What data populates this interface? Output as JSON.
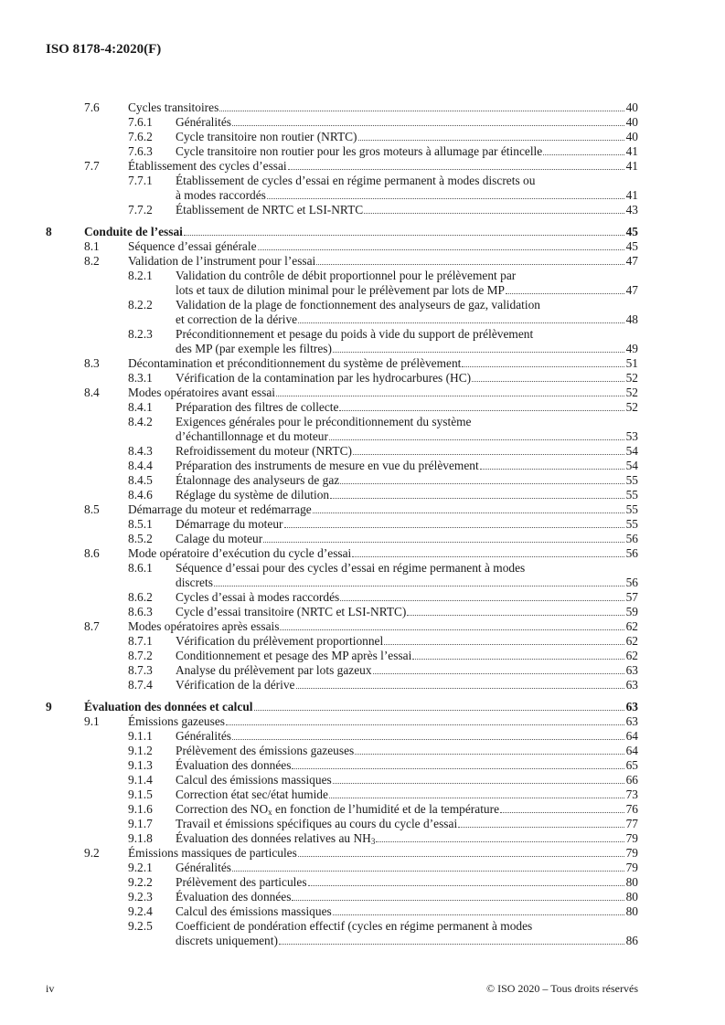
{
  "header": {
    "title": "ISO 8178-4:2020(F)"
  },
  "footer": {
    "page": "iv",
    "copyright": "© ISO 2020 – Tous droits réservés"
  },
  "toc": [
    {
      "level": 1,
      "num": "7.6",
      "lines": [
        [
          "Cycles transitoires"
        ]
      ],
      "page": "40"
    },
    {
      "level": 2,
      "num": "7.6.1",
      "lines": [
        [
          "Généralités"
        ]
      ],
      "page": "40"
    },
    {
      "level": 2,
      "num": "7.6.2",
      "lines": [
        [
          "Cycle transitoire non routier (NRTC)"
        ]
      ],
      "page": "40"
    },
    {
      "level": 2,
      "num": "7.6.3",
      "lines": [
        [
          "Cycle transitoire non routier pour les gros moteurs à allumage par étincelle"
        ]
      ],
      "page": "41"
    },
    {
      "level": 1,
      "num": "7.7",
      "lines": [
        [
          "Établissement des cycles d’essai"
        ]
      ],
      "page": "41"
    },
    {
      "level": 2,
      "num": "7.7.1",
      "lines": [
        [
          "Établissement de cycles d’essai en régime permanent à modes discrets ou"
        ],
        [
          "à modes raccordés"
        ]
      ],
      "page": "41"
    },
    {
      "level": 2,
      "num": "7.7.2",
      "lines": [
        [
          "Établissement de NRTC et LSI-NRTC"
        ]
      ],
      "page": "43"
    },
    {
      "level": 0,
      "num": "8",
      "lines": [
        [
          "Conduite de l’essai"
        ]
      ],
      "page": "45"
    },
    {
      "level": 1,
      "num": "8.1",
      "lines": [
        [
          "Séquence d’essai générale"
        ]
      ],
      "page": "45"
    },
    {
      "level": 1,
      "num": "8.2",
      "lines": [
        [
          "Validation de l’instrument pour l’essai"
        ]
      ],
      "page": "47"
    },
    {
      "level": 2,
      "num": "8.2.1",
      "lines": [
        [
          "Validation du contrôle de débit proportionnel pour le prélèvement par"
        ],
        [
          "lots et taux de dilution minimal pour le prélèvement par lots de MP"
        ]
      ],
      "page": "47"
    },
    {
      "level": 2,
      "num": "8.2.2",
      "lines": [
        [
          "Validation de la plage de fonctionnement des analyseurs de gaz, validation"
        ],
        [
          "et correction de la dérive"
        ]
      ],
      "page": "48"
    },
    {
      "level": 2,
      "num": "8.2.3",
      "lines": [
        [
          "Préconditionnement et pesage du poids à vide du support de prélèvement"
        ],
        [
          "des MP (par exemple les filtres)"
        ]
      ],
      "page": "49"
    },
    {
      "level": 1,
      "num": "8.3",
      "lines": [
        [
          "Décontamination et préconditionnement du système de prélèvement"
        ]
      ],
      "page": "51"
    },
    {
      "level": 2,
      "num": "8.3.1",
      "lines": [
        [
          "Vérification de la contamination par les hydrocarbures (HC)"
        ]
      ],
      "page": "52"
    },
    {
      "level": 1,
      "num": "8.4",
      "lines": [
        [
          "Modes opératoires avant essai"
        ]
      ],
      "page": "52"
    },
    {
      "level": 2,
      "num": "8.4.1",
      "lines": [
        [
          "Préparation des filtres de collecte"
        ]
      ],
      "page": "52"
    },
    {
      "level": 2,
      "num": "8.4.2",
      "lines": [
        [
          "Exigences générales pour le préconditionnement du système"
        ],
        [
          "d’échantillonnage et du moteur"
        ]
      ],
      "page": "53"
    },
    {
      "level": 2,
      "num": "8.4.3",
      "lines": [
        [
          "Refroidissement du moteur (NRTC)"
        ]
      ],
      "page": "54"
    },
    {
      "level": 2,
      "num": "8.4.4",
      "lines": [
        [
          "Préparation des instruments de mesure en vue du prélèvement"
        ]
      ],
      "page": "54"
    },
    {
      "level": 2,
      "num": "8.4.5",
      "lines": [
        [
          "Étalonnage des analyseurs de gaz"
        ]
      ],
      "page": "55"
    },
    {
      "level": 2,
      "num": "8.4.6",
      "lines": [
        [
          "Réglage du système de dilution"
        ]
      ],
      "page": "55"
    },
    {
      "level": 1,
      "num": "8.5",
      "lines": [
        [
          "Démarrage du moteur et redémarrage"
        ]
      ],
      "page": "55"
    },
    {
      "level": 2,
      "num": "8.5.1",
      "lines": [
        [
          "Démarrage du moteur"
        ]
      ],
      "page": "55"
    },
    {
      "level": 2,
      "num": "8.5.2",
      "lines": [
        [
          "Calage du moteur"
        ]
      ],
      "page": "56"
    },
    {
      "level": 1,
      "num": "8.6",
      "lines": [
        [
          "Mode opératoire d’exécution du cycle d’essai"
        ]
      ],
      "page": "56"
    },
    {
      "level": 2,
      "num": "8.6.1",
      "lines": [
        [
          "Séquence d’essai pour des cycles d’essai en régime permanent à modes"
        ],
        [
          "discrets"
        ]
      ],
      "page": "56"
    },
    {
      "level": 2,
      "num": "8.6.2",
      "lines": [
        [
          "Cycles d’essai à modes raccordés"
        ]
      ],
      "page": "57"
    },
    {
      "level": 2,
      "num": "8.6.3",
      "lines": [
        [
          "Cycle d’essai transitoire (NRTC et LSI-NRTC)"
        ]
      ],
      "page": "59"
    },
    {
      "level": 1,
      "num": "8.7",
      "lines": [
        [
          "Modes opératoires après essais"
        ]
      ],
      "page": "62"
    },
    {
      "level": 2,
      "num": "8.7.1",
      "lines": [
        [
          "Vérification du prélèvement proportionnel"
        ]
      ],
      "page": "62"
    },
    {
      "level": 2,
      "num": "8.7.2",
      "lines": [
        [
          "Conditionnement et pesage des MP après l’essai"
        ]
      ],
      "page": "62"
    },
    {
      "level": 2,
      "num": "8.7.3",
      "lines": [
        [
          "Analyse du prélèvement par lots gazeux"
        ]
      ],
      "page": "63"
    },
    {
      "level": 2,
      "num": "8.7.4",
      "lines": [
        [
          "Vérification de la dérive"
        ]
      ],
      "page": "63"
    },
    {
      "level": 0,
      "num": "9",
      "lines": [
        [
          "Évaluation des données et calcul"
        ]
      ],
      "page": "63"
    },
    {
      "level": 1,
      "num": "9.1",
      "lines": [
        [
          "Émissions gazeuses"
        ]
      ],
      "page": "63"
    },
    {
      "level": 2,
      "num": "9.1.1",
      "lines": [
        [
          "Généralités"
        ]
      ],
      "page": "64"
    },
    {
      "level": 2,
      "num": "9.1.2",
      "lines": [
        [
          "Prélèvement des émissions gazeuses"
        ]
      ],
      "page": "64"
    },
    {
      "level": 2,
      "num": "9.1.3",
      "lines": [
        [
          "Évaluation des données"
        ]
      ],
      "page": "65"
    },
    {
      "level": 2,
      "num": "9.1.4",
      "lines": [
        [
          "Calcul des émissions massiques"
        ]
      ],
      "page": "66"
    },
    {
      "level": 2,
      "num": "9.1.5",
      "lines": [
        [
          "Correction état sec/état humide"
        ]
      ],
      "page": "73"
    },
    {
      "level": 2,
      "num": "9.1.6",
      "lines": [
        [
          "Correction des NO",
          "x",
          " en fonction de l’humidité et de la température"
        ]
      ],
      "page": "76"
    },
    {
      "level": 2,
      "num": "9.1.7",
      "lines": [
        [
          "Travail et émissions spécifiques au cours du cycle d’essai"
        ]
      ],
      "page": "77"
    },
    {
      "level": 2,
      "num": "9.1.8",
      "lines": [
        [
          "Évaluation des données relatives au NH",
          "3"
        ]
      ],
      "page": "79"
    },
    {
      "level": 1,
      "num": "9.2",
      "lines": [
        [
          "Émissions massiques de particules"
        ]
      ],
      "page": "79"
    },
    {
      "level": 2,
      "num": "9.2.1",
      "lines": [
        [
          "Généralités"
        ]
      ],
      "page": "79"
    },
    {
      "level": 2,
      "num": "9.2.2",
      "lines": [
        [
          "Prélèvement des particules"
        ]
      ],
      "page": "80"
    },
    {
      "level": 2,
      "num": "9.2.3",
      "lines": [
        [
          "Évaluation des données"
        ]
      ],
      "page": "80"
    },
    {
      "level": 2,
      "num": "9.2.4",
      "lines": [
        [
          "Calcul des émissions massiques"
        ]
      ],
      "page": "80"
    },
    {
      "level": 2,
      "num": "9.2.5",
      "lines": [
        [
          "Coefficient de pondération effectif (cycles en régime permanent à modes"
        ],
        [
          "discrets uniquement)"
        ]
      ],
      "page": "86"
    }
  ]
}
